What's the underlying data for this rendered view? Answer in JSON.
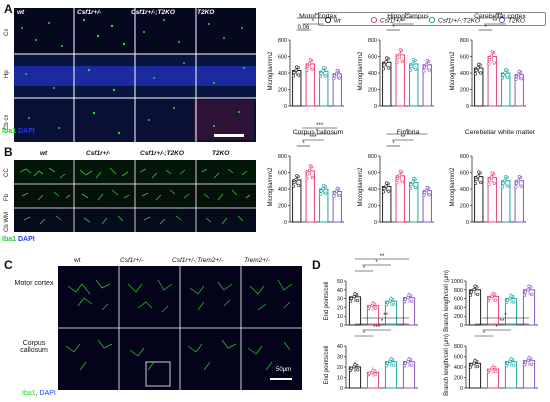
{
  "panels": {
    "A": {
      "letter": "A",
      "columns": [
        "wt",
        "Csf1r+/-",
        "Csf1r+/-;T2KO",
        "T2KO"
      ],
      "rows": [
        "Cx",
        "Hp",
        "Cb cx"
      ],
      "stain": {
        "iba1": "Iba1",
        "dapi": "DAPI"
      }
    },
    "B": {
      "letter": "B",
      "columns": [
        "wt",
        "Csf1r+/-",
        "Csf1r+/-;T2KO",
        "T2KO"
      ],
      "rows": [
        "CC",
        "Fb",
        "Cb WM"
      ],
      "stain": {
        "iba1": "Iba1",
        "dapi": "DAPI"
      }
    },
    "C": {
      "letter": "C",
      "columns": [
        "wt",
        "Csf1r+/-",
        "Csf1r+/-;Trem2+/-",
        "Trem2+/-"
      ],
      "rows": [
        "Motor cortex",
        "Corpus callosum"
      ],
      "scalebar": "50μm",
      "stain": {
        "iba1": "Iba1",
        "dapi": "DAPI"
      }
    },
    "D": {
      "letter": "D"
    }
  },
  "legend": {
    "items": [
      {
        "label": "wt",
        "color": "#222222"
      },
      {
        "label": "Csf1r+/-",
        "color": "#e8457a"
      },
      {
        "label": "Csf1r+/-;T2KO",
        "color": "#1aa6a0"
      },
      {
        "label": "T2KO",
        "color": "#8a55c8"
      }
    ]
  },
  "colors": {
    "wt": "#222222",
    "csf1r": "#e8457a",
    "csf1r_t2ko": "#1aa6a0",
    "t2ko": "#8a55c8",
    "micro_bg": "#03051a",
    "dapi": "#1f2fd0",
    "iba1": "#28e028"
  },
  "chart_data": [
    {
      "type": "bar",
      "title": "Motor cortex",
      "ylabel": "Microglia/mm2",
      "ylim": [
        0,
        800
      ],
      "yticks": [
        "0",
        "200",
        "400",
        "600",
        "800"
      ],
      "categories": [
        "wt",
        "Csf1r+/-",
        "Csf1r+/-;T2KO",
        "T2KO"
      ],
      "values": [
        430,
        510,
        420,
        390
      ],
      "annotations": [
        "0.06",
        "*",
        "**"
      ]
    },
    {
      "type": "bar",
      "title": "Hippocampus",
      "ylabel": "Microglia/mm2",
      "ylim": [
        0,
        800
      ],
      "yticks": [
        "0",
        "200",
        "400",
        "600",
        "800"
      ],
      "categories": [
        "wt",
        "Csf1r+/-",
        "Csf1r+/-;T2KO",
        "T2KO"
      ],
      "values": [
        530,
        620,
        510,
        500
      ],
      "annotations": [
        "*",
        "**",
        "**"
      ]
    },
    {
      "type": "bar",
      "title": "Cerebellar cortex",
      "ylabel": "Microglia/mm2",
      "ylim": [
        0,
        800
      ],
      "yticks": [
        "0",
        "200",
        "400",
        "600",
        "800"
      ],
      "categories": [
        "wt",
        "Csf1r+/-",
        "Csf1r+/-;T2KO",
        "T2KO"
      ],
      "values": [
        460,
        600,
        400,
        380
      ],
      "annotations": [
        "*",
        "**",
        "***"
      ]
    },
    {
      "type": "bar",
      "title": "Corpus callosum",
      "ylabel": "Microglia/mm2",
      "ylim": [
        0,
        800
      ],
      "yticks": [
        "0",
        "200",
        "400",
        "600",
        "800"
      ],
      "categories": [
        "wt",
        "Csf1r+/-",
        "Csf1r+/-;T2KO",
        "T2KO"
      ],
      "values": [
        510,
        620,
        400,
        370
      ],
      "annotations": [
        "*",
        "***",
        "*",
        "***"
      ]
    },
    {
      "type": "bar",
      "title": "Fimbria",
      "ylabel": "Microglia/mm2",
      "ylim": [
        0,
        800
      ],
      "yticks": [
        "0",
        "200",
        "400",
        "600",
        "800"
      ],
      "categories": [
        "wt",
        "Csf1r+/-",
        "Csf1r+/-;T2KO",
        "T2KO"
      ],
      "values": [
        430,
        560,
        480,
        380
      ],
      "annotations": [
        "*",
        "**",
        "*"
      ]
    },
    {
      "type": "bar",
      "title": "Cerebellar white matter",
      "ylabel": "Microglia/mm2",
      "ylim": [
        0,
        800
      ],
      "yticks": [
        "0",
        "200",
        "400",
        "600",
        "800"
      ],
      "categories": [
        "wt",
        "Csf1r+/-",
        "Csf1r+/-;T2KO",
        "T2KO"
      ],
      "values": [
        550,
        540,
        500,
        500
      ],
      "annotations": []
    },
    {
      "type": "bar",
      "title": "",
      "ylabel": "End points/cell",
      "ylim": [
        0,
        50
      ],
      "yticks": [
        "0",
        "10",
        "20",
        "30",
        "40",
        "50"
      ],
      "categories": [
        "wt",
        "Csf1r+/-",
        "Csf1r+/-;T2KO",
        "T2KO"
      ],
      "values": [
        32,
        22,
        27,
        31
      ],
      "annotations": [
        "*",
        "*",
        "**"
      ]
    },
    {
      "type": "bar",
      "title": "",
      "ylabel": "Branch length/cell (μm)",
      "ylim": [
        0,
        1000
      ],
      "yticks": [
        "0",
        "200",
        "400",
        "600",
        "800",
        "1000"
      ],
      "categories": [
        "wt",
        "Csf1r+/-",
        "Csf1r+/-;T2KO",
        "T2KO"
      ],
      "values": [
        800,
        650,
        600,
        800
      ],
      "annotations": []
    },
    {
      "type": "bar",
      "title": "",
      "ylabel": "End points/cell",
      "ylim": [
        0,
        40
      ],
      "yticks": [
        "0",
        "10",
        "20",
        "30",
        "40"
      ],
      "categories": [
        "wt",
        "Csf1r+/-",
        "Csf1r+/-;T2KO",
        "T2KO"
      ],
      "values": [
        20,
        15,
        25,
        25
      ],
      "annotations": [
        "*",
        "***",
        "*",
        "**"
      ]
    },
    {
      "type": "bar",
      "title": "",
      "ylabel": "Branch length/cell (μm)",
      "ylim": [
        0,
        800
      ],
      "yticks": [
        "0",
        "200",
        "400",
        "600",
        "800"
      ],
      "categories": [
        "wt",
        "Csf1r+/-",
        "Csf1r+/-;T2KO",
        "T2KO"
      ],
      "values": [
        470,
        360,
        500,
        520
      ],
      "annotations": [
        "*",
        "*",
        "**",
        "*"
      ]
    }
  ]
}
